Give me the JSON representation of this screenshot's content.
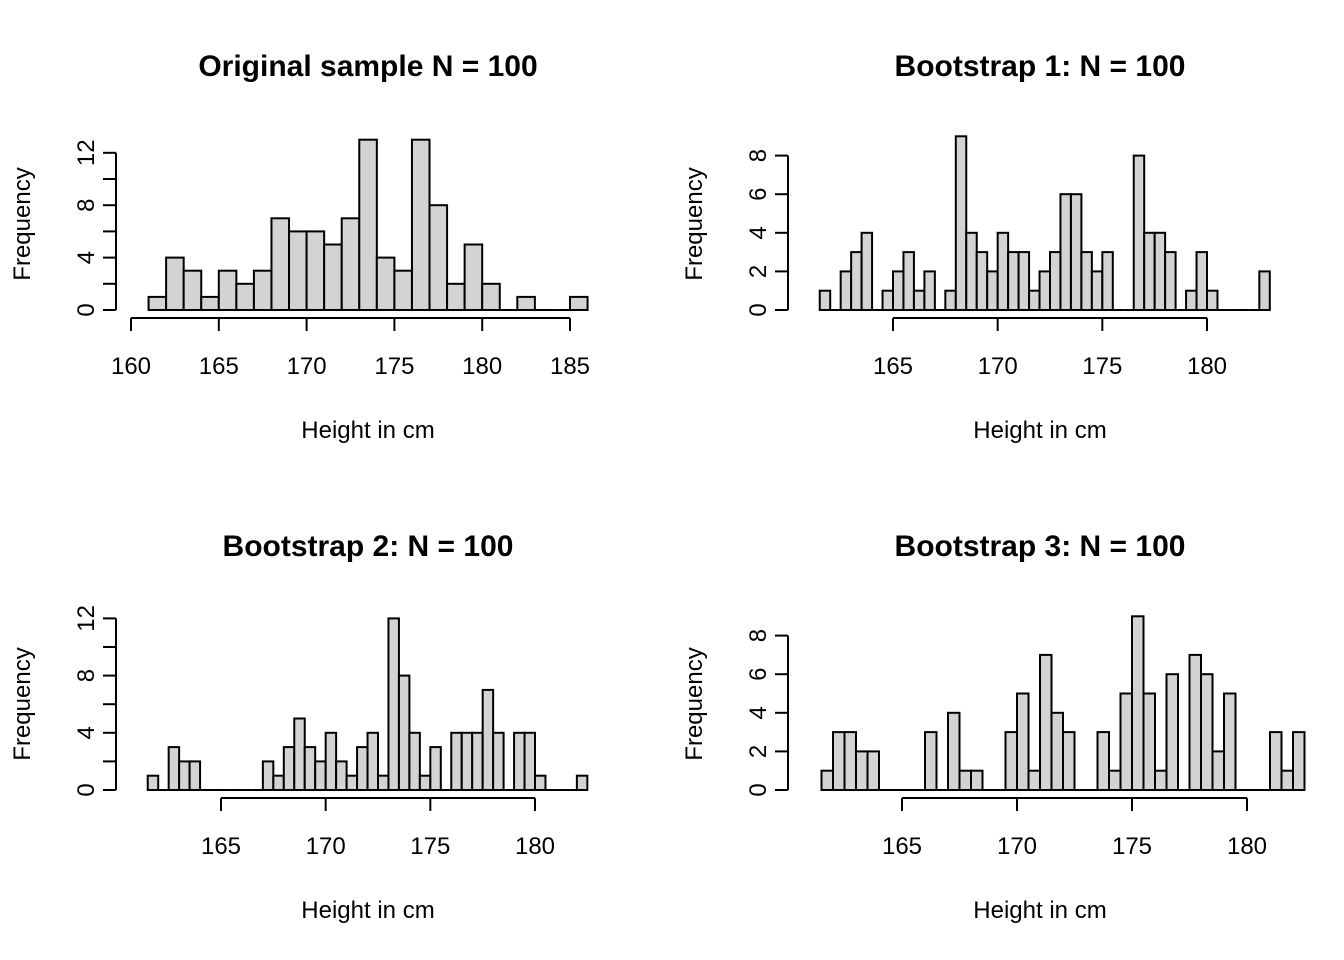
{
  "chart_data": [
    {
      "type": "bar",
      "title": "Original sample N = 100",
      "xlabel": "Height in cm",
      "ylabel": "Frequency",
      "bin_width": 1,
      "bin_start": 161,
      "values": [
        1,
        4,
        3,
        1,
        3,
        2,
        3,
        7,
        6,
        6,
        5,
        7,
        13,
        4,
        3,
        13,
        8,
        2,
        5,
        2,
        0,
        1,
        0,
        0,
        1
      ],
      "xticks": [
        160,
        165,
        170,
        175,
        180,
        185
      ],
      "xlim": [
        160,
        185
      ],
      "yticks": [
        0,
        4,
        8,
        12
      ],
      "ylim": [
        0,
        13
      ]
    },
    {
      "type": "bar",
      "title": "Bootstrap 1: N = 100",
      "xlabel": "Height in cm",
      "ylabel": "Frequency",
      "bin_width": 0.5,
      "bin_start": 161.5,
      "values": [
        1,
        0,
        2,
        3,
        4,
        0,
        1,
        2,
        3,
        1,
        2,
        0,
        1,
        9,
        4,
        3,
        2,
        4,
        3,
        3,
        1,
        2,
        3,
        6,
        6,
        3,
        2,
        3,
        0,
        0,
        8,
        4,
        4,
        3,
        0,
        1,
        3,
        1,
        0,
        0,
        0,
        0,
        2
      ],
      "xticks": [
        165,
        170,
        175,
        180
      ],
      "xlim": [
        165,
        180
      ],
      "yticks": [
        0,
        2,
        4,
        6,
        8
      ],
      "ylim": [
        0,
        9
      ]
    },
    {
      "type": "bar",
      "title": "Bootstrap 2: N = 100",
      "xlabel": "Height in cm",
      "ylabel": "Frequency",
      "bin_width": 0.5,
      "bin_start": 161.5,
      "values": [
        1,
        0,
        3,
        2,
        2,
        0,
        0,
        0,
        0,
        0,
        0,
        2,
        1,
        3,
        5,
        3,
        2,
        4,
        2,
        1,
        3,
        4,
        1,
        12,
        8,
        4,
        1,
        3,
        0,
        4,
        4,
        4,
        7,
        4,
        0,
        4,
        4,
        1,
        0,
        0,
        0,
        1
      ],
      "xticks": [
        165,
        170,
        175,
        180
      ],
      "xlim": [
        165,
        180
      ],
      "yticks": [
        0,
        4,
        8,
        12
      ],
      "ylim": [
        0,
        12
      ]
    },
    {
      "type": "bar",
      "title": "Bootstrap 3: N = 100",
      "xlabel": "Height in cm",
      "ylabel": "Frequency",
      "bin_width": 0.5,
      "bin_start": 161.5,
      "values": [
        1,
        3,
        3,
        2,
        2,
        0,
        0,
        0,
        0,
        3,
        0,
        4,
        1,
        1,
        0,
        0,
        3,
        5,
        1,
        7,
        4,
        3,
        0,
        0,
        3,
        1,
        5,
        9,
        5,
        1,
        6,
        0,
        7,
        6,
        2,
        5,
        0,
        0,
        0,
        3,
        1,
        3
      ],
      "xticks": [
        165,
        170,
        175,
        180
      ],
      "xlim": [
        165,
        180
      ],
      "yticks": [
        0,
        2,
        4,
        6,
        8
      ],
      "ylim": [
        0,
        9
      ]
    }
  ]
}
